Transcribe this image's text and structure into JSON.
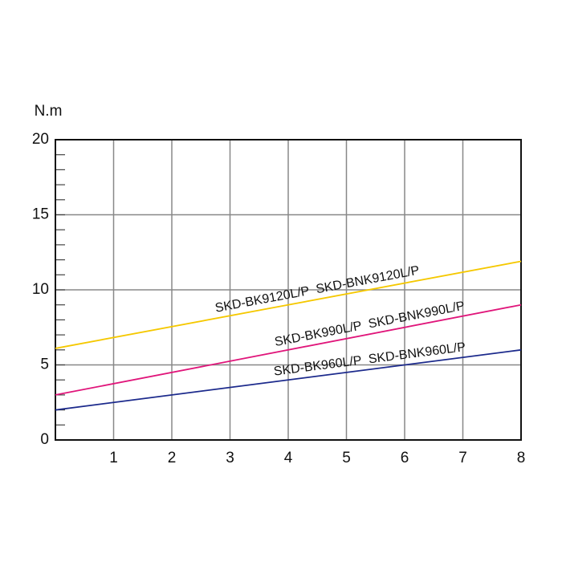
{
  "chart_data": {
    "type": "line",
    "y_label": "N.m",
    "x": [
      0,
      8
    ],
    "series": [
      {
        "name": "SKD-BK9120L/P  SKD-BNK9120L/P",
        "color": "#f5c800",
        "values": [
          6.1,
          11.9
        ]
      },
      {
        "name": "SKD-BK990L/P  SKD-BNK990L/P",
        "color": "#e0157a",
        "values": [
          3.0,
          9.0
        ]
      },
      {
        "name": "SKD-BK960L/P  SKD-BNK960L/P",
        "color": "#1c2a8c",
        "values": [
          2.0,
          6.0
        ]
      }
    ],
    "xlim": [
      0,
      8
    ],
    "xticks": [
      1,
      2,
      3,
      4,
      5,
      6,
      7,
      8
    ],
    "ylim": [
      0,
      20
    ],
    "yticks": [
      0,
      5,
      10,
      15,
      20
    ],
    "grid": true
  }
}
